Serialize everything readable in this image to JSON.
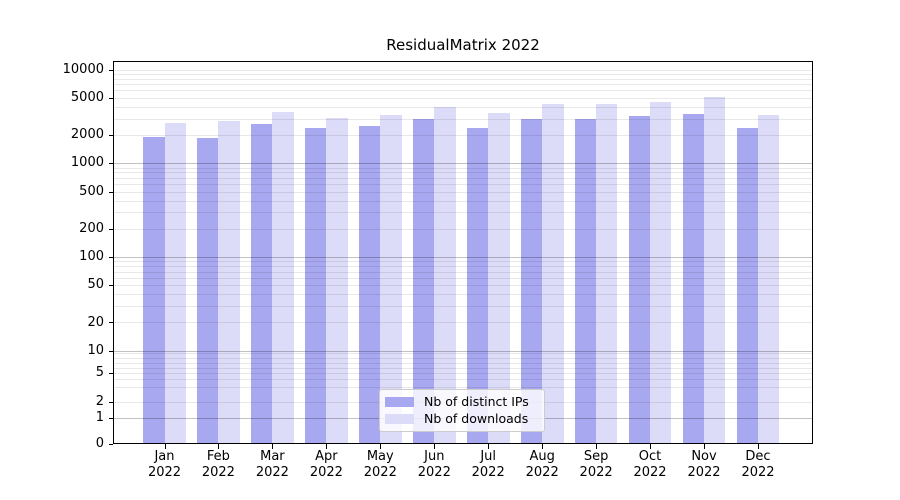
{
  "chart_data": {
    "type": "bar",
    "title": "ResidualMatrix 2022",
    "categories": [
      "Jan 2022",
      "Feb 2022",
      "Mar 2022",
      "Apr 2022",
      "May 2022",
      "Jun 2022",
      "Jul 2022",
      "Aug 2022",
      "Sep 2022",
      "Oct 2022",
      "Nov 2022",
      "Dec 2022"
    ],
    "series": [
      {
        "name": "Nb of distinct IPs",
        "color": "#a8a8f1",
        "values": [
          1890,
          1850,
          2610,
          2360,
          2500,
          3010,
          2410,
          3010,
          3010,
          3170,
          3360,
          2400
        ]
      },
      {
        "name": "Nb of downloads",
        "color": "#dcdcf9",
        "values": [
          2710,
          2830,
          3500,
          3020,
          3280,
          4000,
          3480,
          4330,
          4260,
          4510,
          5060,
          3280
        ]
      }
    ],
    "yscale": "symlog",
    "ylim": [
      0,
      12000
    ],
    "y_tick_labels": [
      "0",
      "1",
      "2",
      "5",
      "10",
      "20",
      "50",
      "100",
      "200",
      "500",
      "1000",
      "2000",
      "5000",
      "10000"
    ],
    "grid": true,
    "legend_position": "lower center"
  }
}
